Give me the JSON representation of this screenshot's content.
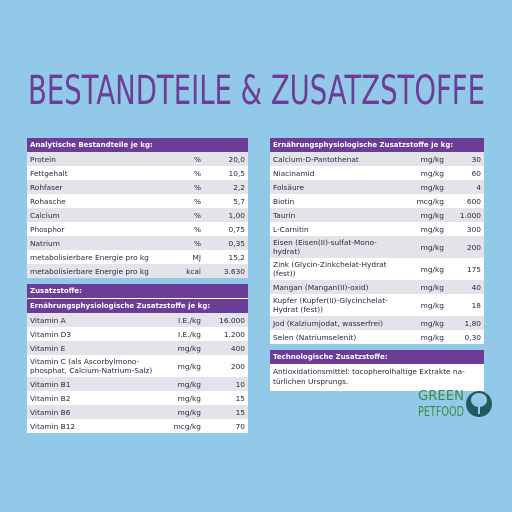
{
  "title": "Bestandteile & Zusatzstoffe",
  "left": {
    "analytical": {
      "header": "Analytische Bestandteile je kg:",
      "rows": [
        [
          "Protein",
          "%",
          "20,0"
        ],
        [
          "Fettgehalt",
          "%",
          "10,5"
        ],
        [
          "Rohfaser",
          "%",
          "2,2"
        ],
        [
          "Rohasche",
          "%",
          "5,7"
        ],
        [
          "Calcium",
          "%",
          "1,00"
        ],
        [
          "Phosphor",
          "%",
          "0,75"
        ],
        [
          "Natrium",
          "%",
          "0,35"
        ],
        [
          "metabolisierbare Energie pro kg",
          "MJ",
          "15,2"
        ],
        [
          "metabolisierbare Energie pro kg",
          "kcal",
          "3.630"
        ]
      ]
    },
    "additives": {
      "header": "Zusatzstoffe:",
      "subheader": "Ernährungsphysiologische Zusatzstoffe je kg:",
      "rows": [
        [
          "Vitamin A",
          "I.E./kg",
          "16.000"
        ],
        [
          "Vitamin D3",
          "I.E./kg",
          "1.200"
        ],
        [
          "Vitamin E",
          "mg/kg",
          "400"
        ],
        [
          "Vitamin C (als Ascorbylmono-\nphosphat, Calcium-Natrium-Salz)",
          "mg/kg",
          "200"
        ],
        [
          "Vitamin B1",
          "mg/kg",
          "10"
        ],
        [
          "Vitamin B2",
          "mg/kg",
          "15"
        ],
        [
          "Vitamin B6",
          "mg/kg",
          "15"
        ],
        [
          "Vitamin B12",
          "mcg/kg",
          "70"
        ]
      ]
    }
  },
  "right": {
    "nutritional": {
      "header": "Ernährungsphysiologische Zusatzstoffe je kg:",
      "rows": [
        [
          "Calcium-D-Pantothenat",
          "mg/kg",
          "30"
        ],
        [
          "Niacinamid",
          "mg/kg",
          "60"
        ],
        [
          "Folsäure",
          "mg/kg",
          "4"
        ],
        [
          "Biotin",
          "mcg/kg",
          "600"
        ],
        [
          "Taurin",
          "mg/kg",
          "1.000"
        ],
        [
          "L-Carnitin",
          "mg/kg",
          "300"
        ],
        [
          "Eisen (Eisen(II)-sulfat-Mono-\nhydrat)",
          "mg/kg",
          "200"
        ],
        [
          "Zink (Glycin-Zinkchelat-Hydrat\n(fest))",
          "mg/kg",
          "175"
        ],
        [
          "Mangan (Mangan(II)-oxid)",
          "mg/kg",
          "40"
        ],
        [
          "Kupfer (Kupfer(II)-Glycinchelat-\nHydrat (fest))",
          "mg/kg",
          "18"
        ],
        [
          "Jod (Kalziumjodat, wasserfrei)",
          "mg/kg",
          "1,80"
        ],
        [
          "Selen (Natriumselenit)",
          "mg/kg",
          "0,30"
        ]
      ]
    },
    "technological": {
      "header": "Technologische Zusatzstoffe:",
      "text": "Antioxidationsmittel: tocopherolhaltige Extrakte na-\ntürlichen Ursprungs."
    }
  },
  "logo": {
    "line1": "GREEN",
    "line2": "PETFOOD"
  }
}
